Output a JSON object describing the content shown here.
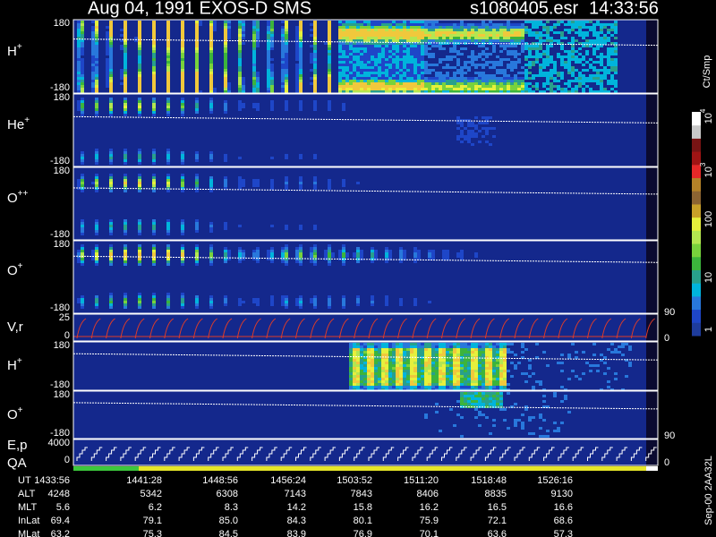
{
  "header": {
    "title": "Aug 04, 1991   EXOS-D SMS",
    "file": "s1080405.esr",
    "time": "14:33:56"
  },
  "panels": [
    {
      "label": {
        "base": "H",
        "sup": "+"
      },
      "ticks": [
        "180",
        "-180"
      ]
    },
    {
      "label": {
        "base": "He",
        "sup": "+"
      },
      "ticks": [
        "180",
        "-180"
      ]
    },
    {
      "label": {
        "base": "O",
        "sup": "++"
      },
      "ticks": [
        "180",
        "-180"
      ]
    },
    {
      "label": {
        "base": "O",
        "sup": "+"
      },
      "ticks": [
        "180",
        "-180"
      ]
    },
    {
      "label": {
        "base": "V,r"
      },
      "ticks": [
        "25",
        "0"
      ],
      "right_ticks": [
        "90",
        "0"
      ]
    },
    {
      "label": {
        "base": "H",
        "sup": "+"
      },
      "ticks": [
        "180",
        "-180"
      ]
    },
    {
      "label": {
        "base": "O",
        "sup": "+"
      },
      "ticks": [
        "180",
        "-180"
      ],
      "right_ticks": [
        "90"
      ]
    },
    {
      "label": {
        "base": "E,p"
      },
      "label2": "QA",
      "ticks": [
        "4000",
        "0"
      ],
      "right_ticks": [
        "0"
      ]
    }
  ],
  "colorbar": {
    "unit": "Ct/Smp",
    "labels": [
      {
        "base": "10",
        "sup": "4"
      },
      {
        "base": "10",
        "sup": "3"
      },
      {
        "base": "100"
      },
      {
        "base": "10"
      },
      {
        "base": "1"
      }
    ]
  },
  "footer": "Sep-00 2AA32L",
  "table": {
    "rows": [
      {
        "name": "UT",
        "values": [
          "1433:56",
          "1441:28",
          "1448:56",
          "1456:24",
          "1503:52",
          "1511:20",
          "1518:48",
          "1526:16"
        ]
      },
      {
        "name": "ALT",
        "values": [
          "4248",
          "5342",
          "6308",
          "7143",
          "7843",
          "8406",
          "8835",
          "9130"
        ]
      },
      {
        "name": "MLT",
        "values": [
          "5.6",
          "6.2",
          "8.3",
          "14.2",
          "15.8",
          "16.2",
          "16.5",
          "16.6"
        ]
      },
      {
        "name": "InLat",
        "values": [
          "69.4",
          "79.1",
          "85.0",
          "84.3",
          "80.1",
          "75.9",
          "72.1",
          "68.6"
        ]
      },
      {
        "name": "MLat",
        "values": [
          "63.2",
          "75.3",
          "84.5",
          "83.9",
          "76.9",
          "70.1",
          "63.6",
          "57.3"
        ]
      }
    ]
  }
}
